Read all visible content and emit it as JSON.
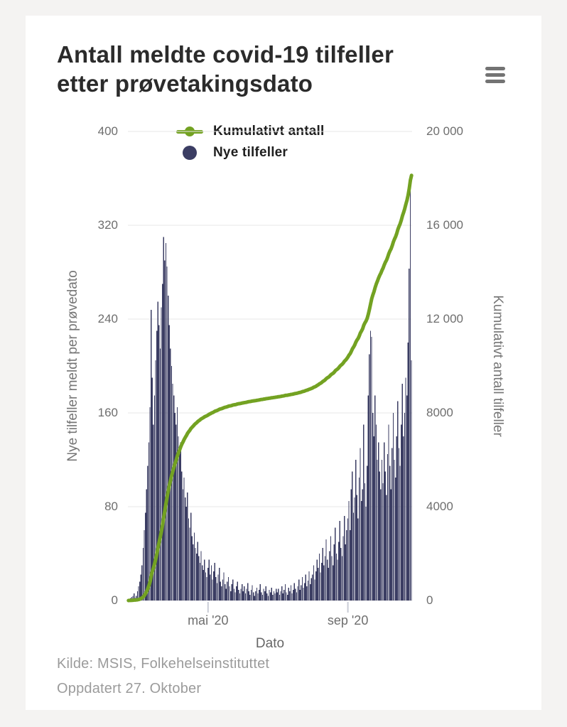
{
  "page": {
    "background": "#f4f3f2",
    "card_background": "#ffffff"
  },
  "header": {
    "title_line1": "Antall meldte covid-19 tilfeller",
    "title_line2": "etter prøvetakingsdato",
    "menu_icon": "hamburger-menu-icon",
    "menu_color": "#737373"
  },
  "legend": [
    {
      "label": "Kumulativt antall",
      "marker": "line-dot",
      "color": "#73a222"
    },
    {
      "label": "Nye tilfeller",
      "marker": "circle",
      "color": "#3b3d63"
    }
  ],
  "chart_data": {
    "type": "bar",
    "title": "Antall meldte covid-19 tilfeller etter prøvetakingsdato",
    "grid_color": "#e7e7e7",
    "x_axis": {
      "label": "Dato",
      "start_date": "2020-02-21",
      "end_date": "2020-10-27",
      "ticks": [
        {
          "label": "mai '20",
          "day_index": 70
        },
        {
          "label": "sep '20",
          "day_index": 193
        }
      ]
    },
    "y_axis_left": {
      "label": "Nye tilfeller meldt per prøvedato",
      "min": 0,
      "max": 400,
      "ticks": [
        "0",
        "80",
        "160",
        "240",
        "320",
        "400"
      ]
    },
    "y_axis_right": {
      "label": "Kumulativt antall tilfeller",
      "min": 0,
      "max": 20000,
      "ticks": [
        "0",
        "4000",
        "8000",
        "12 000",
        "16 000",
        "20 000"
      ]
    },
    "series": [
      {
        "name": "Nye tilfeller",
        "type": "bar",
        "color": "#3b3d63",
        "axis": "left",
        "values": [
          1,
          1,
          2,
          3,
          4,
          6,
          2,
          4,
          8,
          12,
          16,
          22,
          30,
          45,
          60,
          75,
          95,
          115,
          135,
          165,
          248,
          190,
          150,
          175,
          205,
          230,
          255,
          235,
          215,
          250,
          270,
          310,
          290,
          305,
          285,
          260,
          235,
          215,
          200,
          185,
          175,
          160,
          150,
          165,
          140,
          125,
          135,
          110,
          95,
          105,
          88,
          80,
          92,
          70,
          62,
          75,
          55,
          48,
          58,
          45,
          40,
          50,
          38,
          32,
          42,
          30,
          26,
          35,
          24,
          20,
          28,
          35,
          22,
          30,
          18,
          25,
          32,
          20,
          15,
          22,
          28,
          16,
          12,
          18,
          24,
          14,
          10,
          16,
          20,
          12,
          8,
          14,
          18,
          10,
          7,
          12,
          16,
          9,
          6,
          10,
          14,
          8,
          12,
          6,
          10,
          15,
          8,
          5,
          9,
          13,
          7,
          4,
          8,
          11,
          6,
          9,
          14,
          7,
          5,
          10,
          8,
          12,
          6,
          4,
          9,
          7,
          11,
          5,
          8,
          6,
          10,
          7,
          10,
          5,
          8,
          12,
          6,
          9,
          14,
          7,
          5,
          11,
          8,
          13,
          6,
          9,
          15,
          10,
          7,
          12,
          18,
          9,
          13,
          20,
          11,
          15,
          22,
          12,
          17,
          25,
          14,
          19,
          22,
          30,
          18,
          25,
          35,
          28,
          40,
          24,
          32,
          45,
          30,
          38,
          52,
          35,
          28,
          42,
          55,
          38,
          30,
          48,
          62,
          40,
          35,
          50,
          68,
          45,
          38,
          55,
          72,
          48,
          60,
          70,
          85,
          60,
          95,
          110,
          75,
          88,
          120,
          90,
          70,
          105,
          130,
          85,
          95,
          150,
          100,
          80,
          115,
          175,
          210,
          230,
          225,
          160,
          140,
          175,
          150,
          120,
          135,
          110,
          95,
          120,
          100,
          135,
          110,
          90,
          125,
          150,
          115,
          95,
          130,
          160,
          120,
          105,
          140,
          170,
          130,
          115,
          150,
          185,
          140,
          160,
          190,
          175,
          220,
          283,
          350,
          205
        ]
      },
      {
        "name": "Kumulativt antall",
        "type": "line",
        "color": "#73a222",
        "axis": "right",
        "derived": "running cumulative sum of 'Nye tilfeller' values",
        "end_value": 18126
      }
    ]
  },
  "footer": {
    "source": "Kilde: MSIS, Folkehelseinstituttet",
    "updated": "Oppdatert 27. Oktober"
  }
}
